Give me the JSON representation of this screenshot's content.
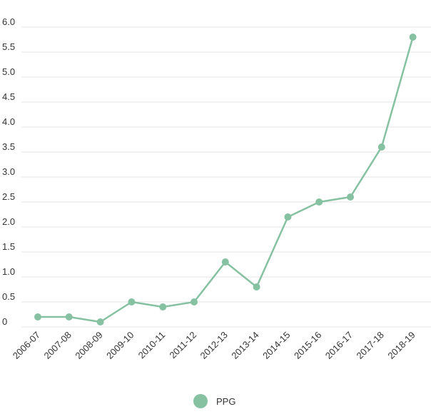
{
  "chart_data": {
    "type": "line",
    "categories": [
      "2006-07",
      "2007-08",
      "2008-09",
      "2009-10",
      "2010-11",
      "2011-12",
      "2012-13",
      "2013-14",
      "2014-15",
      "2015-16",
      "2016-17",
      "2017-18",
      "2018-19"
    ],
    "series": [
      {
        "name": "PPG",
        "values": [
          0.2,
          0.2,
          0.1,
          0.5,
          0.4,
          0.5,
          1.3,
          0.8,
          2.2,
          2.5,
          2.6,
          3.6,
          5.8
        ]
      }
    ],
    "y_ticks": [
      "0",
      "0.5",
      "1.0",
      "1.5",
      "2.0",
      "2.5",
      "3.0",
      "3.5",
      "4.0",
      "4.5",
      "5.0",
      "5.5",
      "6.0"
    ],
    "ylim": [
      0,
      6.0
    ],
    "grid": true,
    "legend_position": "bottom-center",
    "title": "",
    "xlabel": "",
    "ylabel": ""
  },
  "colors": {
    "series": "#86c1a2",
    "grid": "#e6e6e6",
    "text": "#333333"
  }
}
